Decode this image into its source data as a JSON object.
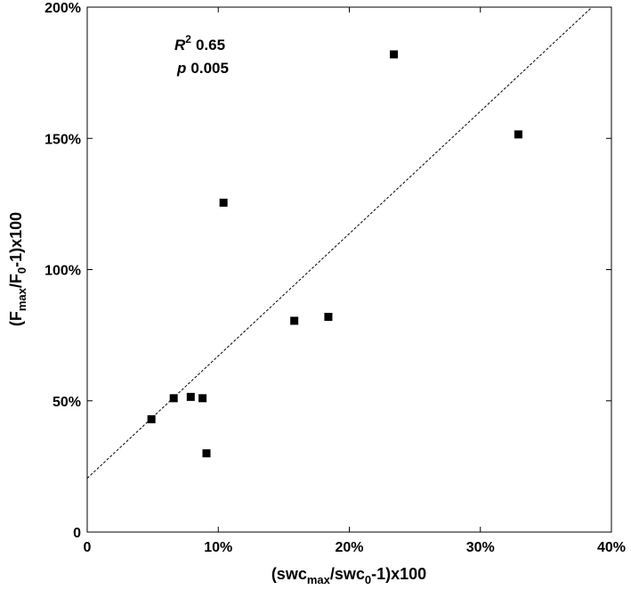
{
  "chart_data": {
    "type": "scatter",
    "xlim": [
      0,
      40
    ],
    "ylim": [
      0,
      200
    ],
    "x_ticks": [
      {
        "value": 0,
        "label": "0"
      },
      {
        "value": 10,
        "label": "10%"
      },
      {
        "value": 20,
        "label": "20%"
      },
      {
        "value": 30,
        "label": "30%"
      },
      {
        "value": 40,
        "label": "40%"
      }
    ],
    "y_ticks": [
      {
        "value": 0,
        "label": "0"
      },
      {
        "value": 50,
        "label": "50%"
      },
      {
        "value": 100,
        "label": "100%"
      },
      {
        "value": 150,
        "label": "150%"
      },
      {
        "value": 200,
        "label": "200%"
      }
    ],
    "xlabel": {
      "pre": "(swc",
      "sub1": "max",
      "mid": "/swc",
      "sub2": "0",
      "post": "-1)x100"
    },
    "ylabel": {
      "pre": "(F",
      "sub1": "max",
      "mid": "/F",
      "sub2": "0",
      "post": "-1)x100"
    },
    "points": [
      {
        "x": 4.9,
        "y": 43
      },
      {
        "x": 6.6,
        "y": 51
      },
      {
        "x": 7.9,
        "y": 51.5
      },
      {
        "x": 8.8,
        "y": 51
      },
      {
        "x": 9.1,
        "y": 30
      },
      {
        "x": 10.4,
        "y": 125.5
      },
      {
        "x": 15.8,
        "y": 80.5
      },
      {
        "x": 18.4,
        "y": 82
      },
      {
        "x": 23.4,
        "y": 182
      },
      {
        "x": 32.9,
        "y": 151.5
      }
    ],
    "fit_line": {
      "intercept": 20.5,
      "slope": 4.66
    },
    "annotation": {
      "r2_label": "R",
      "r2_sup": "2",
      "r2_value": "0.65",
      "p_label": "p",
      "p_value": "0.005"
    },
    "grid": false,
    "marker": "square",
    "marker_color": "#000000",
    "line_style": "dashed"
  }
}
